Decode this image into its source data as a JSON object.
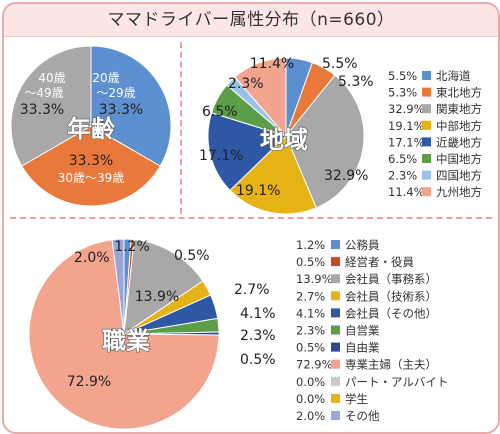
{
  "title": "ママドライバー属性分布（n=660）",
  "colors": {
    "blue": "#5b8fcf",
    "orange": "#e8793a",
    "gray": "#a8a8a8",
    "yellow": "#e6b316",
    "navy": "#2e58a6",
    "green": "#5b9e47",
    "lightblue": "#9ac2e8",
    "salmon": "#f2a48e",
    "darkred": "#c84a2a",
    "lightgray": "#c8c8c8",
    "navy2": "#2a4a8a",
    "lavender": "#9aa5d8"
  },
  "chart_data": [
    {
      "type": "pie",
      "title": "年齢",
      "slices": [
        {
          "name": "20歳〜29歳",
          "value": 33.3,
          "color": "#5b8fcf"
        },
        {
          "name": "30歳〜39歳",
          "value": 33.3,
          "color": "#e8793a"
        },
        {
          "name": "40歳〜49歳",
          "value": 33.3,
          "color": "#a8a8a8"
        }
      ],
      "labels": {
        "age20": "20歳",
        "age20b": "〜29歳",
        "age30": "30歳〜39歳",
        "age40": "40歳",
        "age40b": "〜49歳",
        "v1": "33.3%",
        "v2": "33.3%",
        "v3": "33.3%"
      }
    },
    {
      "type": "pie",
      "title": "地域",
      "slices": [
        {
          "name": "北海道",
          "value": 5.5,
          "color": "#5b8fcf"
        },
        {
          "name": "東北地方",
          "value": 5.3,
          "color": "#e8793a"
        },
        {
          "name": "関東地方",
          "value": 32.9,
          "color": "#a8a8a8"
        },
        {
          "name": "中部地方",
          "value": 19.1,
          "color": "#e6b316"
        },
        {
          "name": "近畿地方",
          "value": 17.1,
          "color": "#2e58a6"
        },
        {
          "name": "中国地方",
          "value": 6.5,
          "color": "#5b9e47"
        },
        {
          "name": "四国地方",
          "value": 2.3,
          "color": "#9ac2e8"
        },
        {
          "name": "九州地方",
          "value": 11.4,
          "color": "#f2a48e"
        }
      ],
      "value_labels": [
        "5.5%",
        "5.3%",
        "32.9%",
        "19.1%",
        "17.1%",
        "6.5%",
        "2.3%",
        "11.4%"
      ],
      "legend": [
        {
          "value": "5.5%",
          "name": "北海道"
        },
        {
          "value": "5.3%",
          "name": "東北地方"
        },
        {
          "value": "32.9%",
          "name": "関東地方"
        },
        {
          "value": "19.1%",
          "name": "中部地方"
        },
        {
          "value": "17.1%",
          "name": "近畿地方"
        },
        {
          "value": "6.5%",
          "name": "中国地方"
        },
        {
          "value": "2.3%",
          "name": "四国地方"
        },
        {
          "value": "11.4%",
          "name": "九州地方"
        }
      ]
    },
    {
      "type": "pie",
      "title": "職業",
      "slices": [
        {
          "name": "公務員",
          "value": 1.2,
          "color": "#5b8fcf"
        },
        {
          "name": "経営者・役員",
          "value": 0.5,
          "color": "#c84a2a"
        },
        {
          "name": "会社員（事務系）",
          "value": 13.9,
          "color": "#a8a8a8"
        },
        {
          "name": "会社員（技術系）",
          "value": 2.7,
          "color": "#e6b316"
        },
        {
          "name": "会社員（その他）",
          "value": 4.1,
          "color": "#2e58a6"
        },
        {
          "name": "自営業",
          "value": 2.3,
          "color": "#5b9e47"
        },
        {
          "name": "自由業",
          "value": 0.5,
          "color": "#2a4a8a"
        },
        {
          "name": "専業主婦（主夫）",
          "value": 72.9,
          "color": "#f2a48e"
        },
        {
          "name": "パート・アルバイト",
          "value": 0.0,
          "color": "#c8c8c8"
        },
        {
          "name": "学生",
          "value": 0.0,
          "color": "#e6b316"
        },
        {
          "name": "その他",
          "value": 2.0,
          "color": "#9aa5d8"
        }
      ],
      "value_labels": [
        "1.2%",
        "0.5%",
        "13.9%",
        "2.7%",
        "4.1%",
        "2.3%",
        "0.5%",
        "72.9%",
        "2.0%"
      ],
      "legend": [
        {
          "value": "1.2%",
          "name": "公務員"
        },
        {
          "value": "0.5%",
          "name": "経営者・役員"
        },
        {
          "value": "13.9%",
          "name": "会社員（事務系）"
        },
        {
          "value": "2.7%",
          "name": "会社員（技術系）"
        },
        {
          "value": "4.1%",
          "name": "会社員（その他）"
        },
        {
          "value": "2.3%",
          "name": "自営業"
        },
        {
          "value": "0.5%",
          "name": "自由業"
        },
        {
          "value": "72.9%",
          "name": "専業主婦（主夫）"
        },
        {
          "value": "0.0%",
          "name": "パート・アルバイト"
        },
        {
          "value": "0.0%",
          "name": "学生"
        },
        {
          "value": "2.0%",
          "name": "その他"
        }
      ]
    }
  ]
}
